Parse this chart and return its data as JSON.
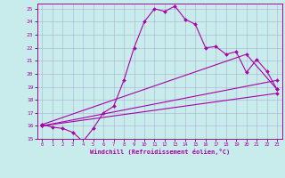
{
  "xlabel": "Windchill (Refroidissement éolien,°C)",
  "ylabel": "",
  "xlim": [
    -0.5,
    23.5
  ],
  "ylim": [
    15,
    25.4
  ],
  "yticks": [
    15,
    16,
    17,
    18,
    19,
    20,
    21,
    22,
    23,
    24,
    25
  ],
  "xticks": [
    0,
    1,
    2,
    3,
    4,
    5,
    6,
    7,
    8,
    9,
    10,
    11,
    12,
    13,
    14,
    15,
    16,
    17,
    18,
    19,
    20,
    21,
    22,
    23
  ],
  "background_color": "#c8ecec",
  "line_color": "#aa00aa",
  "grid_color": "#aaaacc",
  "series": [
    {
      "x": [
        0,
        1,
        2,
        3,
        4,
        5,
        6,
        7,
        8,
        9,
        10,
        11,
        12,
        13,
        14,
        15,
        16,
        17,
        18,
        19,
        20,
        21,
        22,
        23
      ],
      "y": [
        16.1,
        15.9,
        15.8,
        15.5,
        14.8,
        15.8,
        17.0,
        17.5,
        19.5,
        22.0,
        24.0,
        25.0,
        24.8,
        25.2,
        24.2,
        23.8,
        22.0,
        22.1,
        21.5,
        21.7,
        20.1,
        21.1,
        20.2,
        18.8
      ]
    },
    {
      "comment": "top diagonal line - from x=0,y=16.1 to x=20,y=21.5 to x=23,y=18.8",
      "x": [
        0,
        20,
        23
      ],
      "y": [
        16.1,
        21.5,
        18.8
      ]
    },
    {
      "x": [
        0,
        23
      ],
      "y": [
        16.0,
        19.5
      ]
    },
    {
      "x": [
        0,
        23
      ],
      "y": [
        16.0,
        18.5
      ]
    }
  ]
}
